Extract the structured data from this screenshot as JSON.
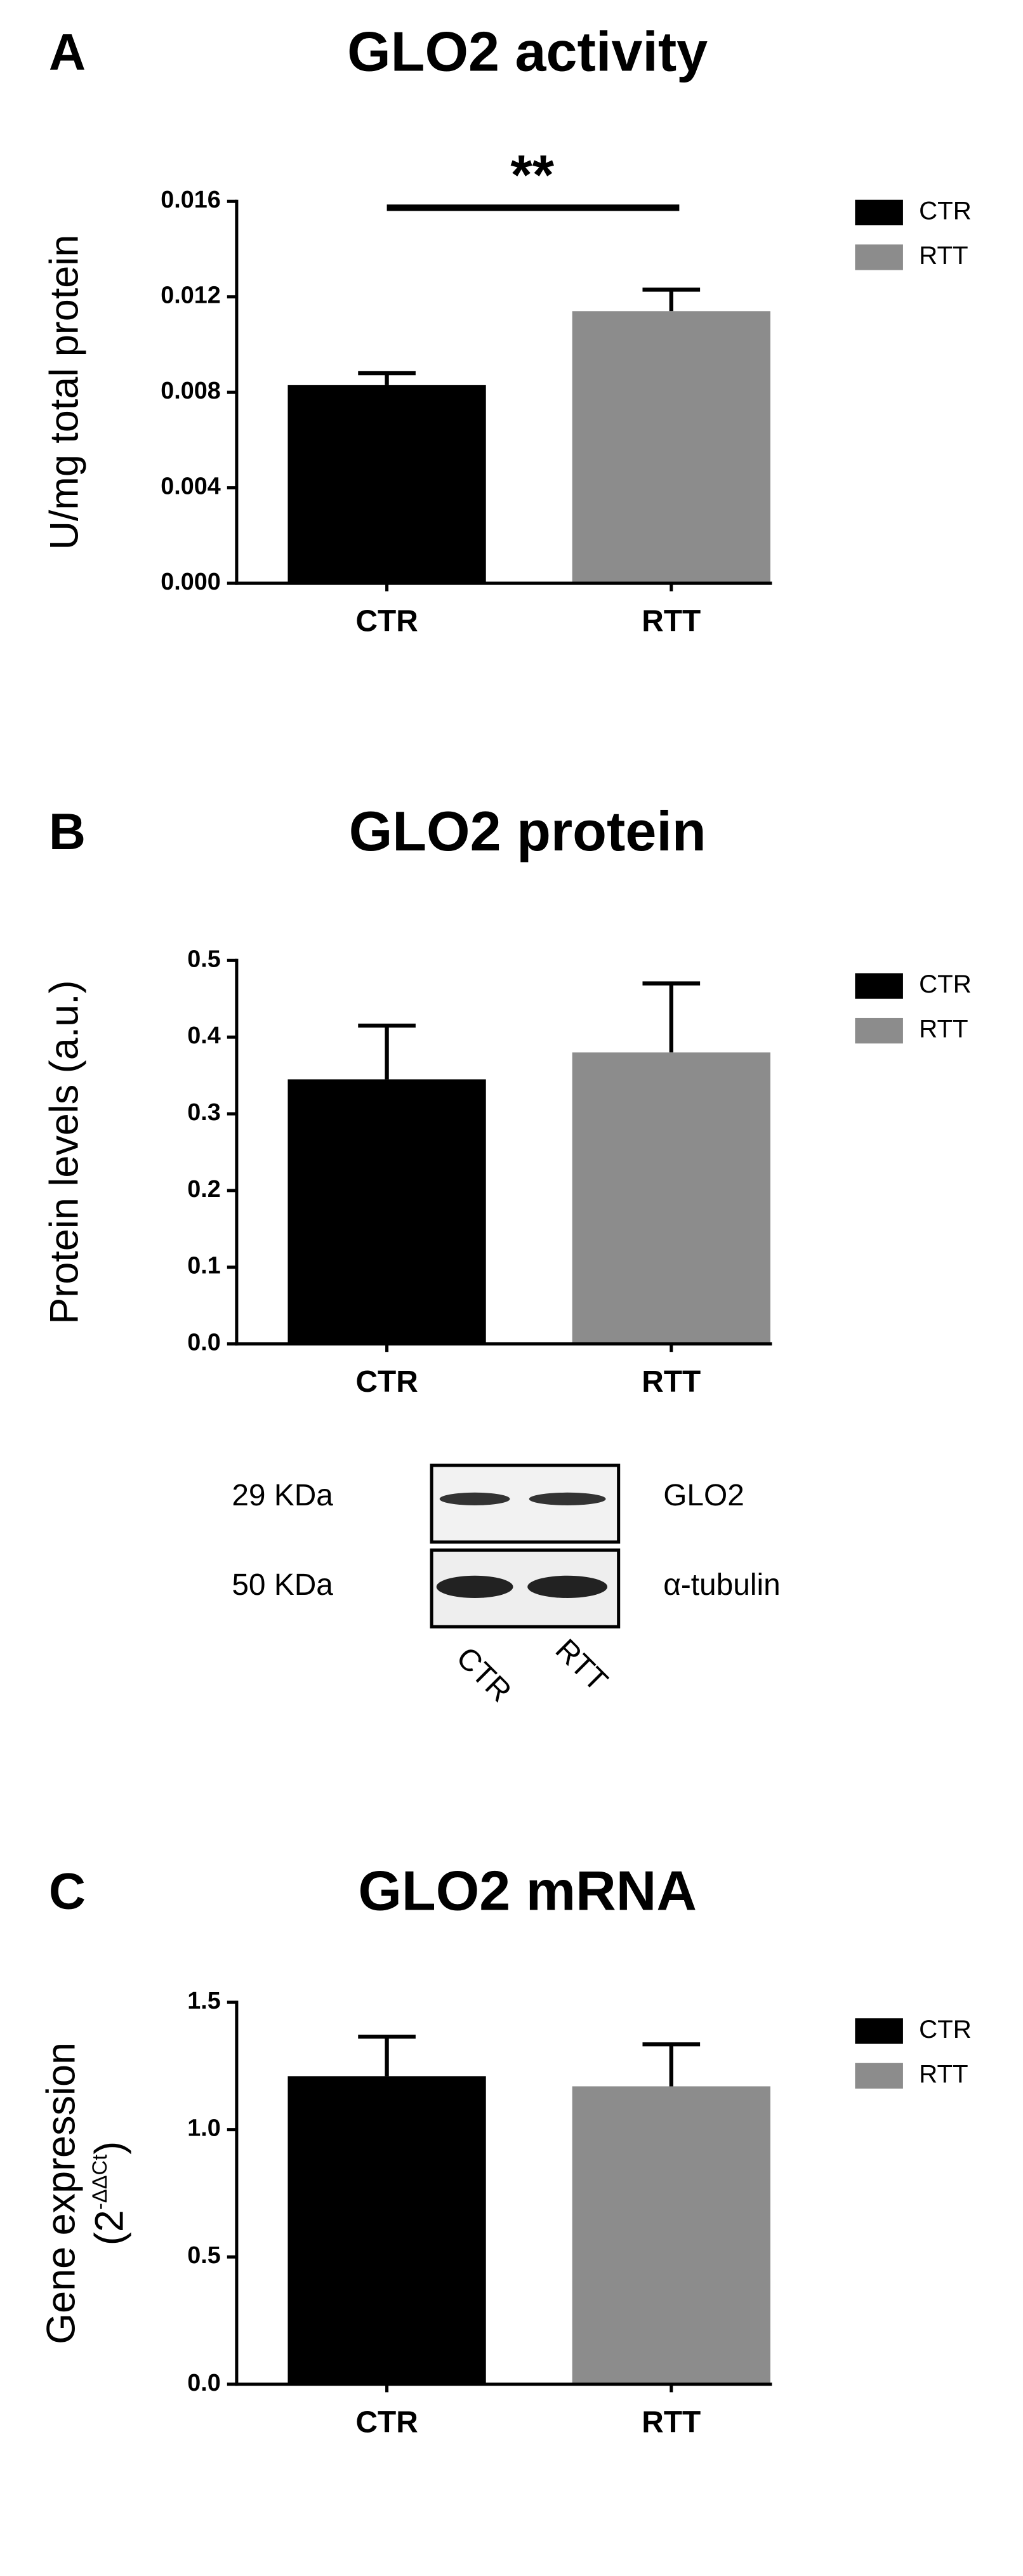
{
  "chart_data": [
    {
      "type": "bar",
      "panel": "A",
      "title": "GLO2 activity",
      "ylabel": "U/mg total protein",
      "categories": [
        "CTR",
        "RTT"
      ],
      "values": [
        0.0083,
        0.0114
      ],
      "errors": [
        0.0005,
        0.0009
      ],
      "colors": [
        "#000000",
        "#8c8c8c"
      ],
      "legend": [
        "CTR",
        "RTT"
      ],
      "annotation": "**",
      "ylim": [
        0,
        0.016
      ],
      "yticks": [
        {
          "value": 0,
          "label": "0.000"
        },
        {
          "value": 0.004,
          "label": "0.004"
        },
        {
          "value": 0.008,
          "label": "0.008"
        },
        {
          "value": 0.012,
          "label": "0.012"
        },
        {
          "value": 0.016,
          "label": "0.016"
        }
      ]
    },
    {
      "type": "bar",
      "panel": "B",
      "title": "GLO2 protein",
      "ylabel": "Protein levels (a.u.)",
      "categories": [
        "CTR",
        "RTT"
      ],
      "values": [
        0.345,
        0.38
      ],
      "errors": [
        0.07,
        0.09
      ],
      "colors": [
        "#000000",
        "#8c8c8c"
      ],
      "legend": [
        "CTR",
        "RTT"
      ],
      "ylim": [
        0,
        0.5
      ],
      "yticks": [
        {
          "value": 0,
          "label": "0.0"
        },
        0.1,
        0.2,
        0.3,
        0.4,
        0.5
      ]
    },
    {
      "type": "bar",
      "panel": "C",
      "title": "GLO2 mRNA",
      "ylabel": "Gene expression",
      "ylabel_formula": [
        "(2",
        "-ΔΔCt",
        ")"
      ],
      "categories": [
        "CTR",
        "RTT"
      ],
      "values": [
        1.21,
        1.17
      ],
      "errors": [
        0.155,
        0.165
      ],
      "colors": [
        "#000000",
        "#8c8c8c"
      ],
      "legend": [
        "CTR",
        "RTT"
      ],
      "ylim": [
        0,
        1.5
      ],
      "yticks": [
        {
          "value": 0,
          "label": "0.0"
        },
        0.5,
        {
          "value": 1,
          "label": "1.0"
        },
        1.5
      ]
    }
  ],
  "blot": {
    "sizes": [
      "29 KDa",
      "50 KDa"
    ],
    "proteins": [
      "GLO2",
      "α-tubulin"
    ],
    "lanes": [
      "CTR",
      "RTT"
    ]
  }
}
